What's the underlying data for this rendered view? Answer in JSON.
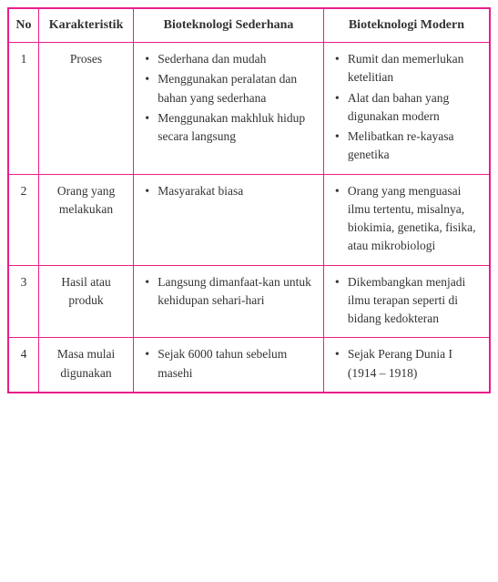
{
  "table": {
    "border_color": "#e91e8c",
    "headers": {
      "no": "No",
      "karakteristik": "Karakteristik",
      "sederhana": "Bioteknologi Sederhana",
      "modern": "Bioteknologi Modern"
    },
    "rows": [
      {
        "no": "1",
        "kar": "Proses",
        "sed": [
          "Sederhana dan mudah",
          "Menggunakan peralatan dan bahan yang sederhana",
          "Menggunakan makhluk hidup secara langsung"
        ],
        "mod": [
          "Rumit dan memerlukan ketelitian",
          "Alat dan bahan yang digunakan modern",
          "Melibatkan re-kayasa genetika"
        ]
      },
      {
        "no": "2",
        "kar": "Orang yang melakukan",
        "sed": [
          "Masyarakat biasa"
        ],
        "mod": [
          "Orang yang menguasai ilmu tertentu, misalnya, biokimia, genetika, fisika, atau mikrobiologi"
        ]
      },
      {
        "no": "3",
        "kar": "Hasil atau produk",
        "sed": [
          "Langsung dimanfaat-kan untuk kehidupan sehari-hari"
        ],
        "mod": [
          "Dikembangkan menjadi ilmu terapan seperti di bidang kedokteran"
        ]
      },
      {
        "no": "4",
        "kar": "Masa mulai digunakan",
        "sed": [
          "Sejak 6000 tahun sebelum masehi"
        ],
        "mod": [
          "Sejak Perang Dunia I (1914 – 1918)"
        ]
      }
    ]
  }
}
